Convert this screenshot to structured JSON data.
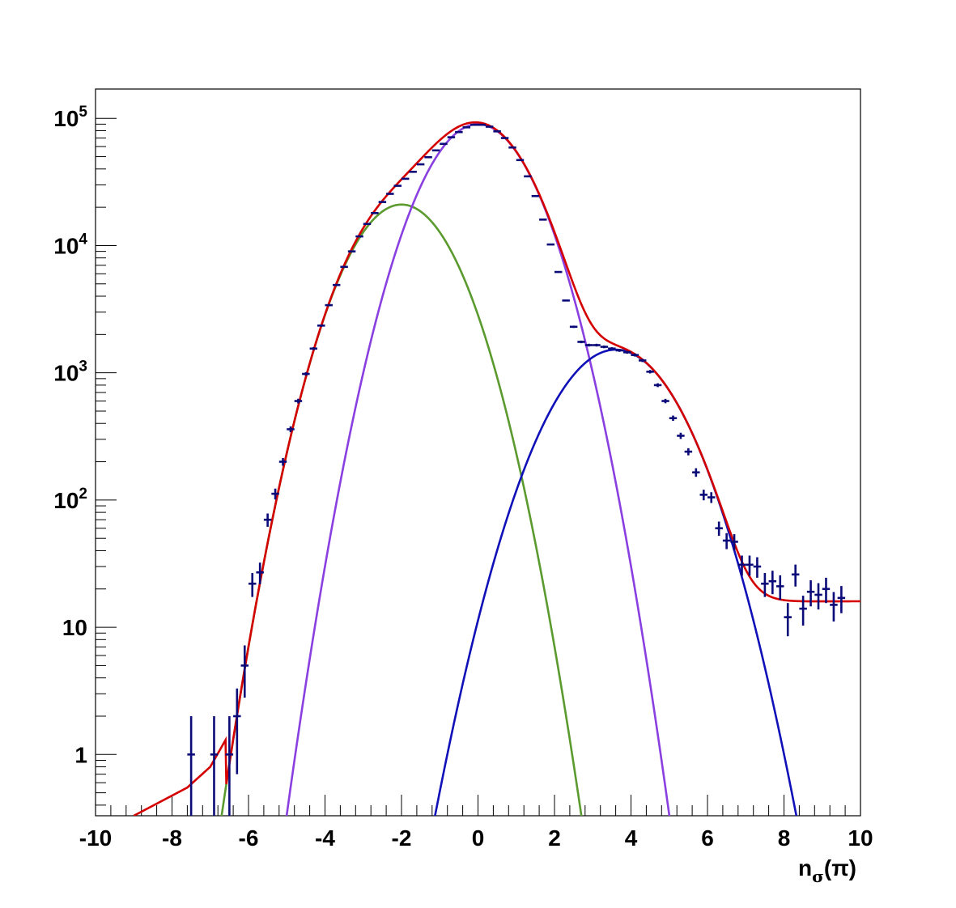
{
  "chart_data": {
    "type": "line",
    "title": "",
    "xlabel": {
      "base": "n",
      "subscript": "σ",
      "suffix": "(π)"
    },
    "ylabel": "",
    "xlim": [
      -10,
      10
    ],
    "ylim": [
      0.33,
      170000
    ],
    "yscale": "log",
    "grid": false,
    "x_ticks": [
      -10,
      -8,
      -6,
      -4,
      -2,
      0,
      2,
      4,
      6,
      8,
      10
    ],
    "x_tick_labels": [
      "-10",
      "-8",
      "-6",
      "-4",
      "-2",
      "0",
      "2",
      "4",
      "6",
      "8",
      "10"
    ],
    "y_ticks": [
      {
        "value": 1,
        "label": "1",
        "sup": ""
      },
      {
        "value": 10,
        "label": "10",
        "sup": ""
      },
      {
        "value": 100,
        "label": "10",
        "sup": "2"
      },
      {
        "value": 1000,
        "label": "10",
        "sup": "3"
      },
      {
        "value": 10000,
        "label": "10",
        "sup": "4"
      },
      {
        "value": 100000,
        "label": "10",
        "sup": "5"
      }
    ],
    "components": [
      {
        "color": "#5a9a2e",
        "amplitude": 21000,
        "mean": -2.0,
        "sigma": 1.0
      },
      {
        "color": "#8a3fe0",
        "amplitude": 90000,
        "mean": 0.0,
        "sigma": 1.0
      },
      {
        "color": "#1010b8",
        "amplitude": 1520,
        "mean": 3.6,
        "sigma": 1.15
      }
    ],
    "total_fit": {
      "color": "#d40000",
      "background_constant": 16,
      "tail_points": [
        [
          -9.0,
          0.33
        ],
        [
          -7.6,
          0.55
        ],
        [
          -7.0,
          0.8
        ],
        [
          -6.6,
          1.3
        ]
      ]
    },
    "data_points": {
      "color": "#0a0a78",
      "x_half_width": 0.1,
      "points": [
        [
          -7.5,
          1,
          1
        ],
        [
          -6.9,
          1,
          1
        ],
        [
          -6.5,
          1,
          1
        ],
        [
          -6.3,
          2,
          1.3
        ],
        [
          -6.1,
          5,
          2.2
        ],
        [
          -5.9,
          22,
          4.7
        ],
        [
          -5.7,
          27,
          5.2
        ],
        [
          -5.5,
          70,
          8.4
        ],
        [
          -5.3,
          112,
          11
        ],
        [
          -5.1,
          200,
          14
        ],
        [
          -4.9,
          360,
          19
        ],
        [
          -4.7,
          600,
          25
        ],
        [
          -4.5,
          980,
          31
        ],
        [
          -4.3,
          1550,
          39
        ],
        [
          -4.1,
          2350,
          48
        ],
        [
          -3.9,
          3400,
          58
        ],
        [
          -3.7,
          4900,
          70
        ],
        [
          -3.5,
          6800,
          82
        ],
        [
          -3.3,
          9000,
          95
        ],
        [
          -3.1,
          11800,
          109
        ],
        [
          -2.9,
          14800,
          122
        ],
        [
          -2.7,
          18000,
          134
        ],
        [
          -2.5,
          22000,
          148
        ],
        [
          -2.3,
          25500,
          160
        ],
        [
          -2.1,
          29500,
          172
        ],
        [
          -1.9,
          33500,
          183
        ],
        [
          -1.7,
          38000,
          195
        ],
        [
          -1.5,
          43500,
          209
        ],
        [
          -1.3,
          49500,
          222
        ],
        [
          -1.1,
          56000,
          237
        ],
        [
          -0.9,
          63000,
          251
        ],
        [
          -0.7,
          71000,
          266
        ],
        [
          -0.5,
          78000,
          279
        ],
        [
          -0.3,
          85000,
          292
        ],
        [
          -0.1,
          89000,
          298
        ],
        [
          0.1,
          89000,
          298
        ],
        [
          0.3,
          86000,
          293
        ],
        [
          0.5,
          79000,
          281
        ],
        [
          0.7,
          70000,
          265
        ],
        [
          0.9,
          59000,
          243
        ],
        [
          1.1,
          47000,
          217
        ],
        [
          1.3,
          35000,
          187
        ],
        [
          1.5,
          24500,
          157
        ],
        [
          1.7,
          16000,
          126
        ],
        [
          1.9,
          10200,
          101
        ],
        [
          2.1,
          6200,
          79
        ],
        [
          2.3,
          3700,
          61
        ],
        [
          2.5,
          2300,
          48
        ],
        [
          2.7,
          1750,
          42
        ],
        [
          2.9,
          1650,
          41
        ],
        [
          3.1,
          1650,
          41
        ],
        [
          3.3,
          1600,
          40
        ],
        [
          3.5,
          1550,
          39
        ],
        [
          3.7,
          1500,
          39
        ],
        [
          3.9,
          1450,
          38
        ],
        [
          4.1,
          1380,
          37
        ],
        [
          4.3,
          1250,
          35
        ],
        [
          4.5,
          1020,
          32
        ],
        [
          4.7,
          800,
          28
        ],
        [
          4.9,
          600,
          24
        ],
        [
          5.1,
          440,
          21
        ],
        [
          5.3,
          320,
          18
        ],
        [
          5.5,
          240,
          15.5
        ],
        [
          5.7,
          165,
          12.8
        ],
        [
          5.9,
          110,
          10.5
        ],
        [
          6.1,
          105,
          10.2
        ],
        [
          6.3,
          60,
          7.7
        ],
        [
          6.5,
          48,
          6.9
        ],
        [
          6.7,
          47,
          6.9
        ],
        [
          6.9,
          31,
          5.6
        ],
        [
          7.1,
          31,
          5.6
        ],
        [
          7.3,
          30,
          5.5
        ],
        [
          7.5,
          22,
          4.7
        ],
        [
          7.7,
          23,
          4.8
        ],
        [
          7.9,
          21,
          4.6
        ],
        [
          8.1,
          12,
          3.5
        ],
        [
          8.3,
          26,
          5.1
        ],
        [
          8.5,
          14,
          3.7
        ],
        [
          8.7,
          19,
          4.4
        ],
        [
          8.9,
          18,
          4.2
        ],
        [
          9.1,
          20,
          4.5
        ],
        [
          9.3,
          15,
          3.9
        ],
        [
          9.5,
          17,
          4.1
        ]
      ]
    }
  }
}
